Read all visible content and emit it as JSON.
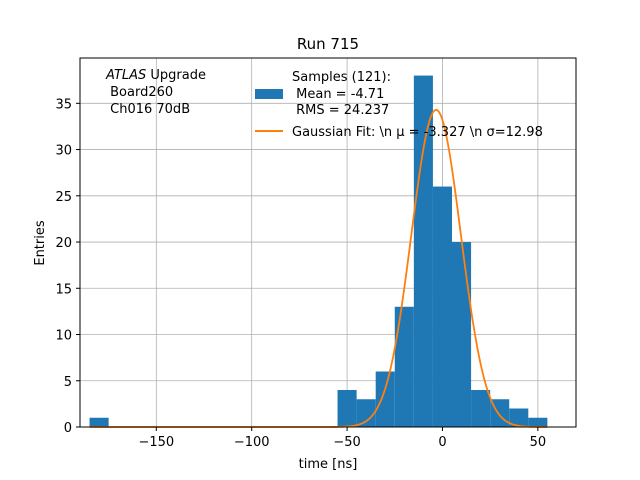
{
  "chart_data": {
    "type": "bar",
    "title": "Run 715",
    "xlabel": "time [ns]",
    "ylabel": "Entries",
    "xlim": [
      -190,
      70
    ],
    "ylim": [
      0,
      39.9
    ],
    "xticks": [
      -150,
      -100,
      -50,
      0,
      50
    ],
    "xtick_labels": [
      "−150",
      "−100",
      "−50",
      "0",
      "50"
    ],
    "yticks": [
      0,
      5,
      10,
      15,
      20,
      25,
      30,
      35
    ],
    "ytick_labels": [
      "0",
      "5",
      "10",
      "15",
      "20",
      "25",
      "30",
      "35"
    ],
    "grid": true,
    "annotation": {
      "italic": "ATLAS",
      "rest": " Upgrade",
      "line2": " Board260",
      "line3": " Ch016 70dB"
    },
    "legend": {
      "location": "top-right",
      "hist_label_lines": [
        "Samples (121):",
        " Mean = -4.71",
        " RMS = 24.237"
      ],
      "fit_label": "Gaussian Fit: \\n μ = -3.327 \\n σ=12.98"
    },
    "histogram": {
      "name": "Samples (121):",
      "color": "#1f77b4",
      "bins": [
        {
          "x0": -185,
          "x1": -175,
          "count": 1
        },
        {
          "x0": -55,
          "x1": -45,
          "count": 4
        },
        {
          "x0": -45,
          "x1": -35,
          "count": 3
        },
        {
          "x0": -35,
          "x1": -25,
          "count": 6
        },
        {
          "x0": -25,
          "x1": -15,
          "count": 13
        },
        {
          "x0": -15,
          "x1": -5,
          "count": 38
        },
        {
          "x0": -5,
          "x1": 5,
          "count": 26
        },
        {
          "x0": 5,
          "x1": 15,
          "count": 20
        },
        {
          "x0": 15,
          "x1": 25,
          "count": 4
        },
        {
          "x0": 25,
          "x1": 35,
          "count": 3
        },
        {
          "x0": 35,
          "x1": 45,
          "count": 2
        },
        {
          "x0": 45,
          "x1": 55,
          "count": 1
        }
      ]
    },
    "fit": {
      "name": "Gaussian Fit",
      "color": "#ff7f0e",
      "mu": -3.327,
      "sigma": 12.98,
      "amplitude": 34.3,
      "x_range": [
        -185,
        55
      ]
    }
  }
}
